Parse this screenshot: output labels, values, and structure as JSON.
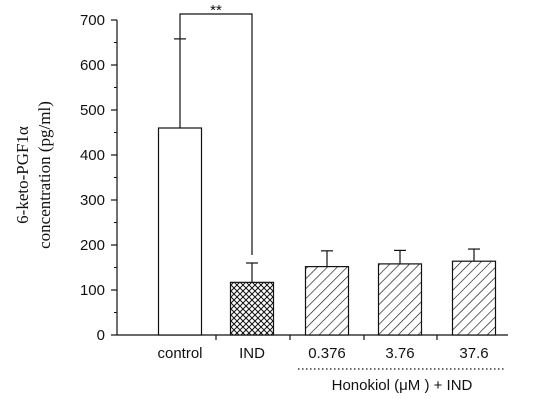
{
  "chart_data": {
    "type": "bar",
    "ylabel_line1": "6-keto-PGF1α",
    "ylabel_line2": "concentration (pg/ml)",
    "xlabel": "",
    "ylim": [
      0,
      700
    ],
    "yticks": [
      0,
      100,
      200,
      300,
      400,
      500,
      600,
      700
    ],
    "categories": [
      "control",
      "IND",
      "0.376",
      "3.76",
      "37.6"
    ],
    "values": [
      460,
      117,
      152,
      158,
      164
    ],
    "error": [
      198,
      43,
      35,
      30,
      27
    ],
    "fills": [
      "none",
      "crosshatch",
      "diagonal",
      "diagonal",
      "diagonal"
    ],
    "group_label": "Honokiol (μM ) + IND",
    "group_categories": [
      "0.376",
      "3.76",
      "37.6"
    ],
    "significance": {
      "from": "control",
      "to": "IND",
      "label": "**"
    },
    "grid": false,
    "legend": "none"
  }
}
